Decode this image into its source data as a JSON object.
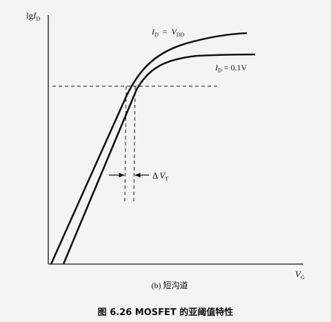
{
  "axes": {
    "y_label_main": "lg",
    "y_label_var": "I",
    "y_label_sub": "D",
    "x_label_var": "V",
    "x_label_sub": "G"
  },
  "curves": {
    "upper": {
      "var1": "I",
      "sub1": "D",
      "eq": "=",
      "var2": "V",
      "sub2": "DD"
    },
    "lower": {
      "var1": "I",
      "sub1": "D",
      "eq": "= 0.1V"
    }
  },
  "shift": {
    "symbol": "Δ",
    "var": "V",
    "sub": "T"
  },
  "subcaption": "(b)  短沟道",
  "caption": "图 6.26   MOSFET 的亚阈值特性",
  "colors": {
    "ink": "#111111",
    "background": "#f4f4f2"
  }
}
